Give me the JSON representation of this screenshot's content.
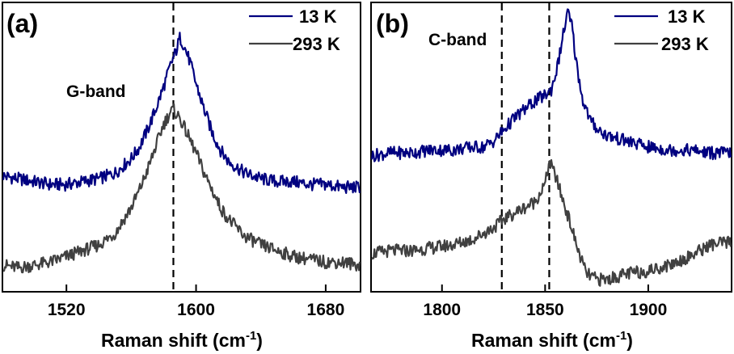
{
  "chart_data": [
    {
      "panel": "(a)",
      "type": "line",
      "xlabel_main": "Raman shift (cm",
      "xlabel_sup": "-1",
      "xlabel_end": ")",
      "xlim": [
        1481,
        1701
      ],
      "ylim": [
        0,
        1
      ],
      "xticks": [
        1520,
        1600,
        1680
      ],
      "annotation": "G-band",
      "reference_lines": [
        1586
      ],
      "legend_position": "top-right",
      "series": [
        {
          "name": "13 K",
          "color": "#000080",
          "x": [
            1481,
            1490,
            1500,
            1510,
            1520,
            1530,
            1540,
            1550,
            1560,
            1565,
            1570,
            1575,
            1580,
            1584,
            1588,
            1590,
            1592,
            1596,
            1600,
            1605,
            1610,
            1615,
            1620,
            1630,
            1640,
            1650,
            1660,
            1670,
            1680,
            1690,
            1701
          ],
          "y": [
            0.4,
            0.39,
            0.38,
            0.37,
            0.37,
            0.38,
            0.39,
            0.41,
            0.46,
            0.5,
            0.56,
            0.63,
            0.71,
            0.78,
            0.84,
            0.88,
            0.86,
            0.8,
            0.72,
            0.63,
            0.55,
            0.49,
            0.45,
            0.41,
            0.39,
            0.38,
            0.38,
            0.37,
            0.37,
            0.36,
            0.36
          ]
        },
        {
          "name": "293 K",
          "color": "#404040",
          "x": [
            1481,
            1490,
            1500,
            1510,
            1520,
            1530,
            1540,
            1550,
            1560,
            1565,
            1570,
            1575,
            1580,
            1584,
            1586,
            1590,
            1595,
            1600,
            1605,
            1610,
            1615,
            1620,
            1630,
            1640,
            1650,
            1660,
            1670,
            1680,
            1690,
            1701
          ],
          "y": [
            0.09,
            0.08,
            0.09,
            0.1,
            0.12,
            0.14,
            0.16,
            0.2,
            0.29,
            0.35,
            0.42,
            0.5,
            0.58,
            0.62,
            0.63,
            0.6,
            0.54,
            0.48,
            0.41,
            0.35,
            0.29,
            0.25,
            0.19,
            0.16,
            0.14,
            0.12,
            0.11,
            0.1,
            0.1,
            0.09
          ]
        }
      ]
    },
    {
      "panel": "(b)",
      "type": "line",
      "xlabel_main": "Raman shift (cm",
      "xlabel_sup": "-1",
      "xlabel_end": ")",
      "xlim": [
        1766,
        1940
      ],
      "ylim": [
        0,
        1
      ],
      "xticks": [
        1800,
        1850,
        1900
      ],
      "annotation": "C-band",
      "reference_lines": [
        1829,
        1852
      ],
      "legend_position": "top-right",
      "series": [
        {
          "name": "13 K",
          "color": "#000080",
          "x": [
            1766,
            1775,
            1785,
            1795,
            1805,
            1815,
            1820,
            1825,
            1830,
            1835,
            1840,
            1845,
            1850,
            1853,
            1856,
            1859,
            1861,
            1863,
            1865,
            1868,
            1872,
            1876,
            1880,
            1890,
            1900,
            1910,
            1920,
            1930,
            1940
          ],
          "y": [
            0.47,
            0.48,
            0.48,
            0.49,
            0.49,
            0.5,
            0.5,
            0.52,
            0.56,
            0.6,
            0.63,
            0.66,
            0.68,
            0.7,
            0.78,
            0.9,
            0.97,
            0.92,
            0.8,
            0.67,
            0.59,
            0.56,
            0.54,
            0.52,
            0.5,
            0.49,
            0.49,
            0.48,
            0.48
          ]
        },
        {
          "name": "293 K",
          "color": "#404040",
          "x": [
            1766,
            1775,
            1785,
            1795,
            1805,
            1815,
            1820,
            1825,
            1830,
            1835,
            1840,
            1845,
            1850,
            1852,
            1855,
            1858,
            1862,
            1866,
            1870,
            1875,
            1880,
            1890,
            1900,
            1910,
            1920,
            1930,
            1940
          ],
          "y": [
            0.13,
            0.14,
            0.14,
            0.15,
            0.16,
            0.18,
            0.2,
            0.22,
            0.25,
            0.27,
            0.29,
            0.31,
            0.37,
            0.45,
            0.4,
            0.33,
            0.24,
            0.14,
            0.06,
            0.04,
            0.04,
            0.06,
            0.07,
            0.09,
            0.12,
            0.16,
            0.17
          ]
        }
      ]
    }
  ]
}
